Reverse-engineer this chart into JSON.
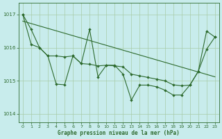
{
  "title": "Graphe pression niveau de la mer (hPa)",
  "bg_color": "#c8ecec",
  "line_color": "#2d6a2d",
  "grid_color": "#a8cca8",
  "x_ticks": [
    0,
    1,
    2,
    3,
    4,
    5,
    6,
    7,
    8,
    9,
    10,
    11,
    12,
    13,
    14,
    15,
    16,
    17,
    18,
    19,
    20,
    21,
    22,
    23
  ],
  "y_ticks": [
    1014,
    1015,
    1016,
    1017
  ],
  "ylim": [
    1013.75,
    1017.35
  ],
  "xlim": [
    -0.5,
    23.5
  ],
  "series_jagged": [
    1017.0,
    1016.55,
    1016.0,
    1015.75,
    1014.9,
    1014.88,
    1015.75,
    1015.52,
    1016.55,
    1015.12,
    1015.47,
    1015.47,
    1015.2,
    1014.42,
    1014.87,
    1014.87,
    1014.82,
    1014.72,
    1014.57,
    1014.57,
    1014.87,
    1015.28,
    1016.5,
    1016.32
  ],
  "series_smooth": [
    1017.0,
    1016.1,
    1016.0,
    1015.75,
    1015.75,
    1015.72,
    1015.75,
    1015.52,
    1015.5,
    1015.45,
    1015.47,
    1015.45,
    1015.42,
    1015.2,
    1015.15,
    1015.1,
    1015.05,
    1015.0,
    1014.88,
    1014.85,
    1014.87,
    1015.28,
    1015.95,
    1016.32
  ],
  "trend_x": [
    0,
    23
  ],
  "trend_y": [
    1016.8,
    1015.12
  ]
}
